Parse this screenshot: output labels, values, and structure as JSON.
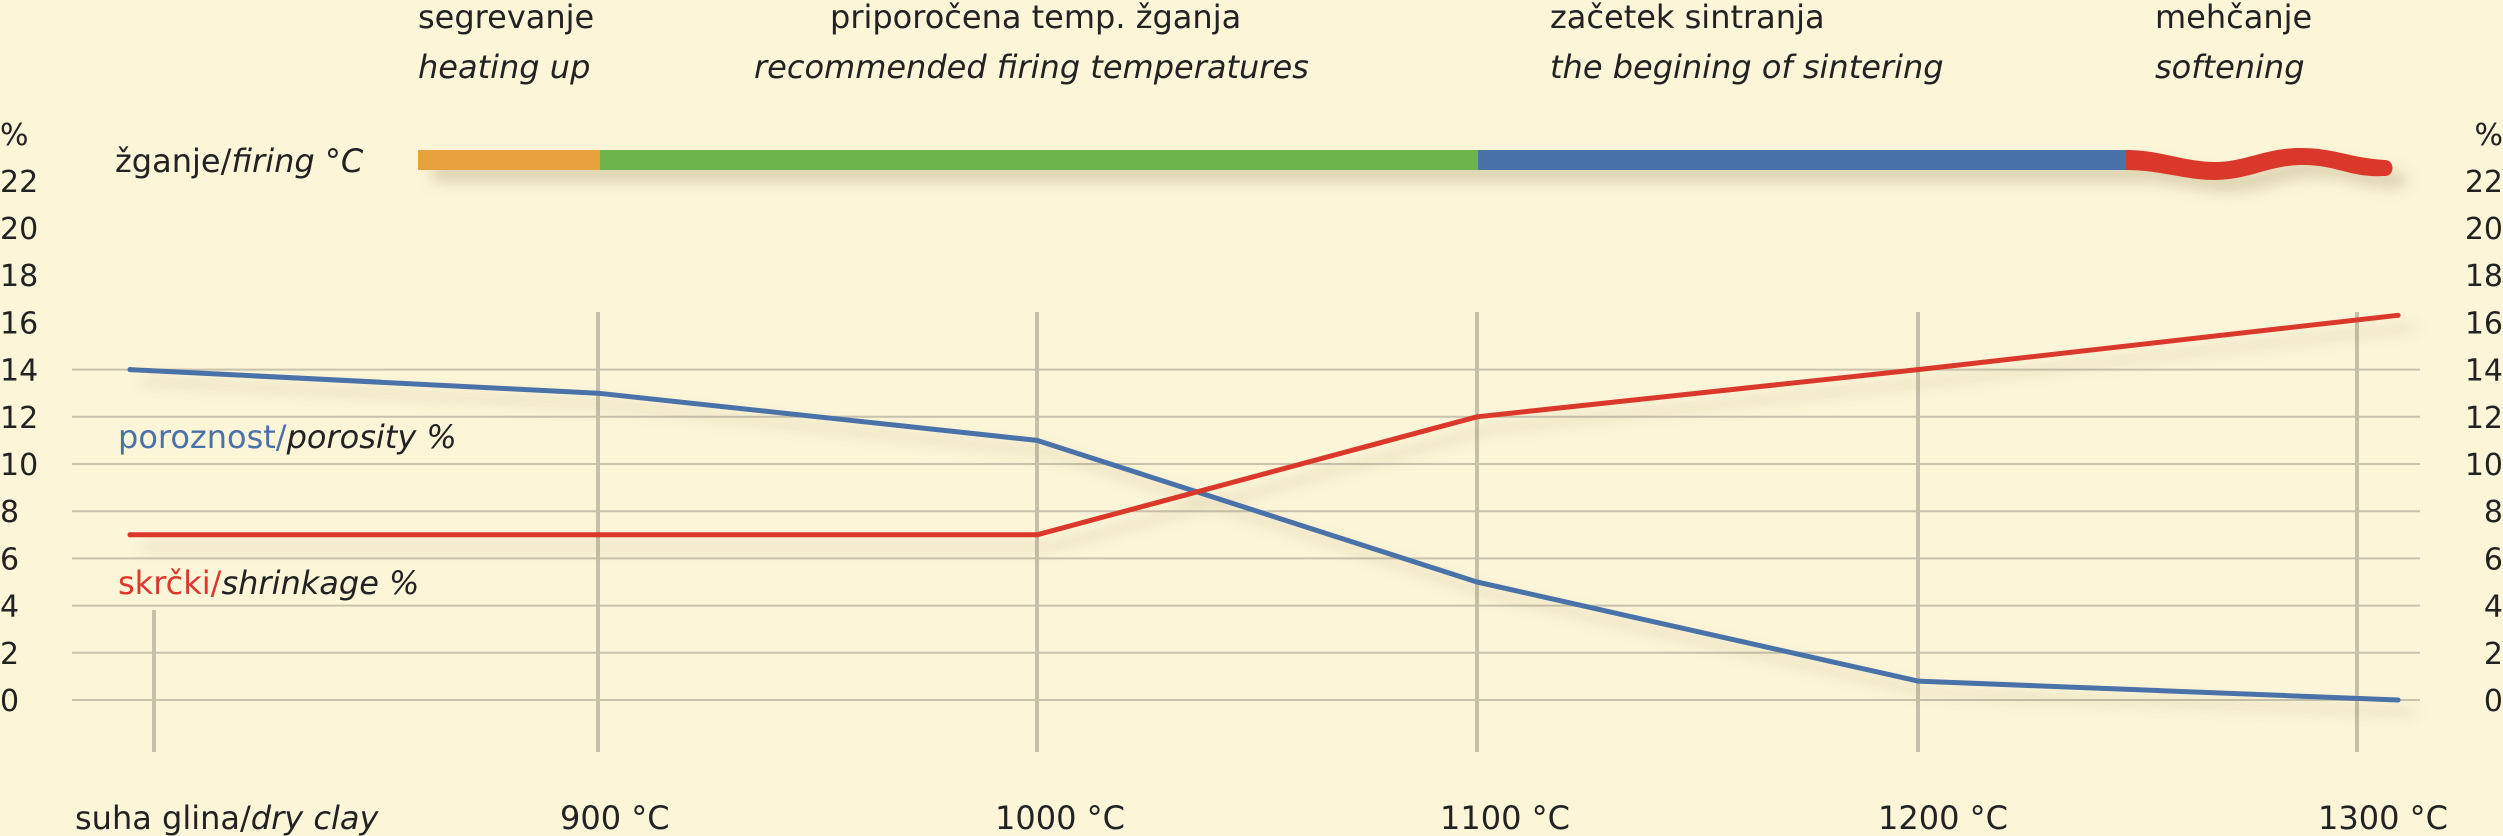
{
  "stages": [
    {
      "name": "segrevanje",
      "name_en": "heating up",
      "color": "#e5a23d"
    },
    {
      "name": "priporočena temp. žganja",
      "name_en": "recommended firing temperatures",
      "color": "#6db54b"
    },
    {
      "name": "začetek sintranja",
      "name_en": "the begining of sintering",
      "color": "#4a72a8"
    },
    {
      "name": "mehčanje",
      "name_en": "softening",
      "color": "#d9382c"
    }
  ],
  "firing_label": {
    "text": "žganje/",
    "italic": "firing °C"
  },
  "chart_data": {
    "type": "line",
    "categories": [
      "suha glina/dry clay",
      "900 °C",
      "1000 °C",
      "1100 °C",
      "1200 °C",
      "1300 °C"
    ],
    "x_labels": [
      {
        "text": "suha glina/",
        "italic": "dry clay"
      },
      {
        "text": "900 °C"
      },
      {
        "text": "1000 °C"
      },
      {
        "text": "1100 °C"
      },
      {
        "text": "1200 °C"
      },
      {
        "text": "1300 °C"
      }
    ],
    "series": [
      {
        "name": "poroznost/porosity %",
        "label": "poroznost/",
        "label_italic": "porosity %",
        "color": "#4a72a8",
        "values": [
          14,
          13,
          11,
          5,
          0.8,
          0
        ]
      },
      {
        "name": "skrčki/shrinkage %",
        "label": "skrčki/",
        "label_italic": "shrinkage %",
        "color": "#d9382c",
        "values": [
          7,
          7,
          7,
          12,
          14,
          16.3
        ]
      }
    ],
    "ylabel": "%",
    "y_ticks": [
      0,
      2,
      4,
      6,
      8,
      10,
      12,
      14,
      16,
      18,
      20,
      22
    ],
    "ylim": [
      0,
      22
    ],
    "grid": true
  }
}
